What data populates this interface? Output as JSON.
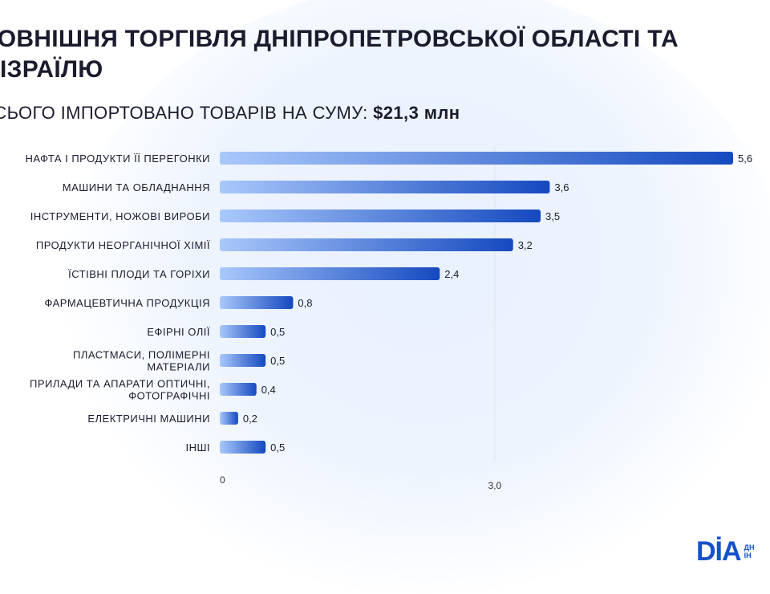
{
  "title": "ЗОВНІШНЯ ТОРГІВЛЯ ДНІПРОПЕТРОВСЬКОЇ ОБЛАСТІ ТА\nІЗРАЇЛЮ",
  "subtitle_prefix": "ВСЬОГО ІМПОРТОВАНО ТОВАРІВ НА СУМУ: ",
  "subtitle_value": "$21,3 млн",
  "logo": {
    "text": "DİA",
    "side": "ДН\nІН"
  },
  "colors": {
    "bar_start": "#a9c8fb",
    "bar_end": "#1549bf",
    "text": "#1b1b2e",
    "accent": "#1552c9"
  },
  "chart_data": {
    "type": "bar",
    "orientation": "horizontal",
    "categories": [
      [
        "НАФТА І ПРОДУКТИ ЇЇ ПЕРЕГОНКИ"
      ],
      [
        "МАШИНИ ТА ОБЛАДНАННЯ"
      ],
      [
        "ІНСТРУМЕНТИ, НОЖОВІ ВИРОБИ"
      ],
      [
        "ПРОДУКТИ НЕОРГАНІЧНОЇ ХІМІЇ"
      ],
      [
        "ЇСТІВНІ ПЛОДИ ТА ГОРІХИ"
      ],
      [
        "ФАРМАЦЕВТИЧНА ПРОДУКЦІЯ"
      ],
      [
        "ЕФІРНІ ОЛІЇ"
      ],
      [
        "ПЛАСТМАСИ, ПОЛІМЕРНІ",
        "МАТЕРІАЛИ"
      ],
      [
        "ПРИЛАДИ ТА АПАРАТИ ОПТИЧНІ,",
        "ФОТОГРАФІЧНІ"
      ],
      [
        "ЕЛЕКТРИЧНІ МАШИНИ"
      ],
      [
        "ІНШІ"
      ]
    ],
    "values": [
      5.6,
      3.6,
      3.5,
      3.2,
      2.4,
      0.8,
      0.5,
      0.5,
      0.4,
      0.2,
      0.5
    ],
    "value_labels": [
      "5,6",
      "3,6",
      "3,5",
      "3,2",
      "2,4",
      "0,8",
      "0,5",
      "0,5",
      "0,4",
      "0,2",
      "0,5"
    ],
    "xticks": [
      0,
      3
    ],
    "xtick_labels": [
      "0",
      "3,0"
    ],
    "xlim": [
      0,
      5.6
    ],
    "grid": "vertical at 3,0"
  }
}
